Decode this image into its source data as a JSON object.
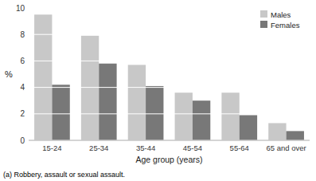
{
  "chart_data": {
    "type": "bar",
    "xlabel": "Age group (years)",
    "ylabel": "%",
    "categories": [
      "15-24",
      "25-34",
      "35-44",
      "45-54",
      "55-64",
      "65 and over"
    ],
    "series": [
      {
        "name": "Males",
        "color": "#c8c8c8",
        "values": [
          9.5,
          7.9,
          5.7,
          3.6,
          3.6,
          1.3
        ]
      },
      {
        "name": "Females",
        "color": "#787878",
        "values": [
          4.2,
          5.8,
          4.1,
          3.0,
          1.9,
          0.7
        ]
      }
    ],
    "ylim": [
      0,
      10
    ],
    "yticks": [
      0,
      2,
      4,
      6,
      8,
      10
    ],
    "grid": true,
    "legend": "upper right",
    "annotations": [
      "(a) Robbery, assault or sexual assault."
    ]
  }
}
